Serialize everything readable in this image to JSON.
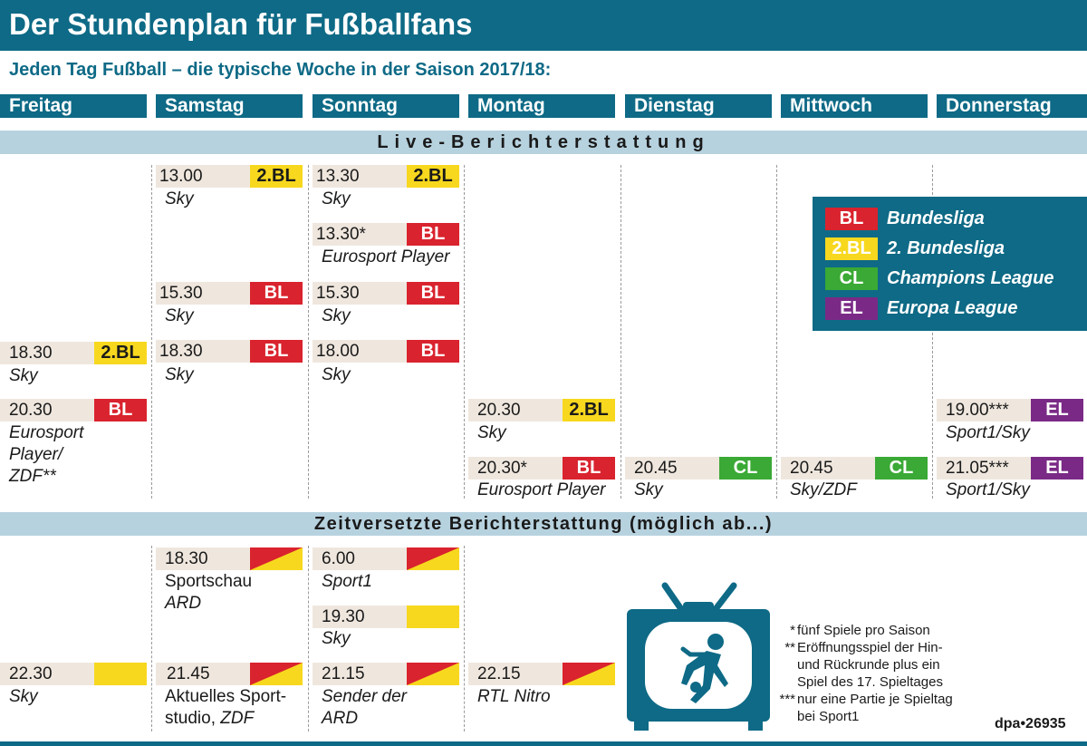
{
  "title": "Der Stundenplan für Fußballfans",
  "subtitle": "Jeden Tag Fußball – die typische Woche in der Saison 2017/18:",
  "days": [
    "Freitag",
    "Samstag",
    "Sonntag",
    "Montag",
    "Dienstag",
    "Mittwoch",
    "Donnerstag"
  ],
  "sections": {
    "live": "Live-Berichterstattung",
    "delayed": "Zeitversetzte Berichterstattung (möglich ab...)"
  },
  "live": {
    "sa_1300": {
      "time": "13.00",
      "badge": "2.BL",
      "channel": "Sky"
    },
    "so_1330a": {
      "time": "13.30",
      "badge": "2.BL",
      "channel": "Sky"
    },
    "so_1330b": {
      "time": "13.30*",
      "badge": "BL",
      "channel": "Eurosport Player"
    },
    "sa_1530": {
      "time": "15.30",
      "badge": "BL",
      "channel": "Sky"
    },
    "so_1530": {
      "time": "15.30",
      "badge": "BL",
      "channel": "Sky"
    },
    "fr_1830": {
      "time": "18.30",
      "badge": "2.BL",
      "channel": "Sky"
    },
    "sa_1830": {
      "time": "18.30",
      "badge": "BL",
      "channel": "Sky"
    },
    "so_1800": {
      "time": "18.00",
      "badge": "BL",
      "channel": "Sky"
    },
    "fr_2030": {
      "time": "20.30",
      "badge": "BL",
      "channel_1": "Eurosport",
      "channel_2": "Player/",
      "channel_3": "ZDF**"
    },
    "mo_2030a": {
      "time": "20.30",
      "badge": "2.BL",
      "channel": "Sky"
    },
    "mo_2030b": {
      "time": "20.30*",
      "badge": "BL",
      "channel": "Eurosport Player"
    },
    "di_2045": {
      "time": "20.45",
      "badge": "CL",
      "channel": "Sky"
    },
    "mi_2045": {
      "time": "20.45",
      "badge": "CL",
      "channel": "Sky/ZDF"
    },
    "do_1900": {
      "time": "19.00***",
      "badge": "EL",
      "channel": "Sport1/Sky"
    },
    "do_2105": {
      "time": "21.05***",
      "badge": "EL",
      "channel": "Sport1/Sky"
    }
  },
  "delayed": {
    "sa_1830": {
      "time": "18.30",
      "show": "Sportschau",
      "channel": "ARD"
    },
    "so_600": {
      "time": "6.00",
      "channel": "Sport1"
    },
    "so_1930": {
      "time": "19.30",
      "channel": "Sky"
    },
    "fr_2230": {
      "time": "22.30",
      "channel": "Sky"
    },
    "sa_2145": {
      "time": "21.45",
      "show_1": "Aktuelles Sport-",
      "show_2": "studio,",
      "channel": "ZDF"
    },
    "so_2115": {
      "time": "21.15",
      "channel_1": "Sender der",
      "channel_2": "ARD"
    },
    "mo_2215": {
      "time": "22.15",
      "channel": "RTL Nitro"
    }
  },
  "legend": [
    {
      "badge": "BL",
      "label": "Bundesliga",
      "color": "#d9232e"
    },
    {
      "badge": "2.BL",
      "label": "2. Bundesliga",
      "color": "#f7d81e"
    },
    {
      "badge": "CL",
      "label": "Champions League",
      "color": "#3aa935"
    },
    {
      "badge": "EL",
      "label": "Europa League",
      "color": "#7a2a86"
    }
  ],
  "footnotes": [
    {
      "mark": "*",
      "lines": [
        "fünf Spiele pro Saison"
      ]
    },
    {
      "mark": "**",
      "lines": [
        "Eröffnungsspiel der Hin-",
        "und Rückrunde plus ein",
        "Spiel des 17. Spieltages"
      ]
    },
    {
      "mark": "***",
      "lines": [
        "nur eine Partie je Spieltag",
        "bei Sport1"
      ]
    }
  ],
  "credit": "dpa•26935",
  "icons": {
    "tv": "tv-soccer-icon"
  },
  "colors": {
    "primary": "#0e6a86",
    "section": "#b7d2df",
    "time_bar": "#efe7de",
    "yellow": "#f7d81e",
    "red": "#d9232e"
  }
}
